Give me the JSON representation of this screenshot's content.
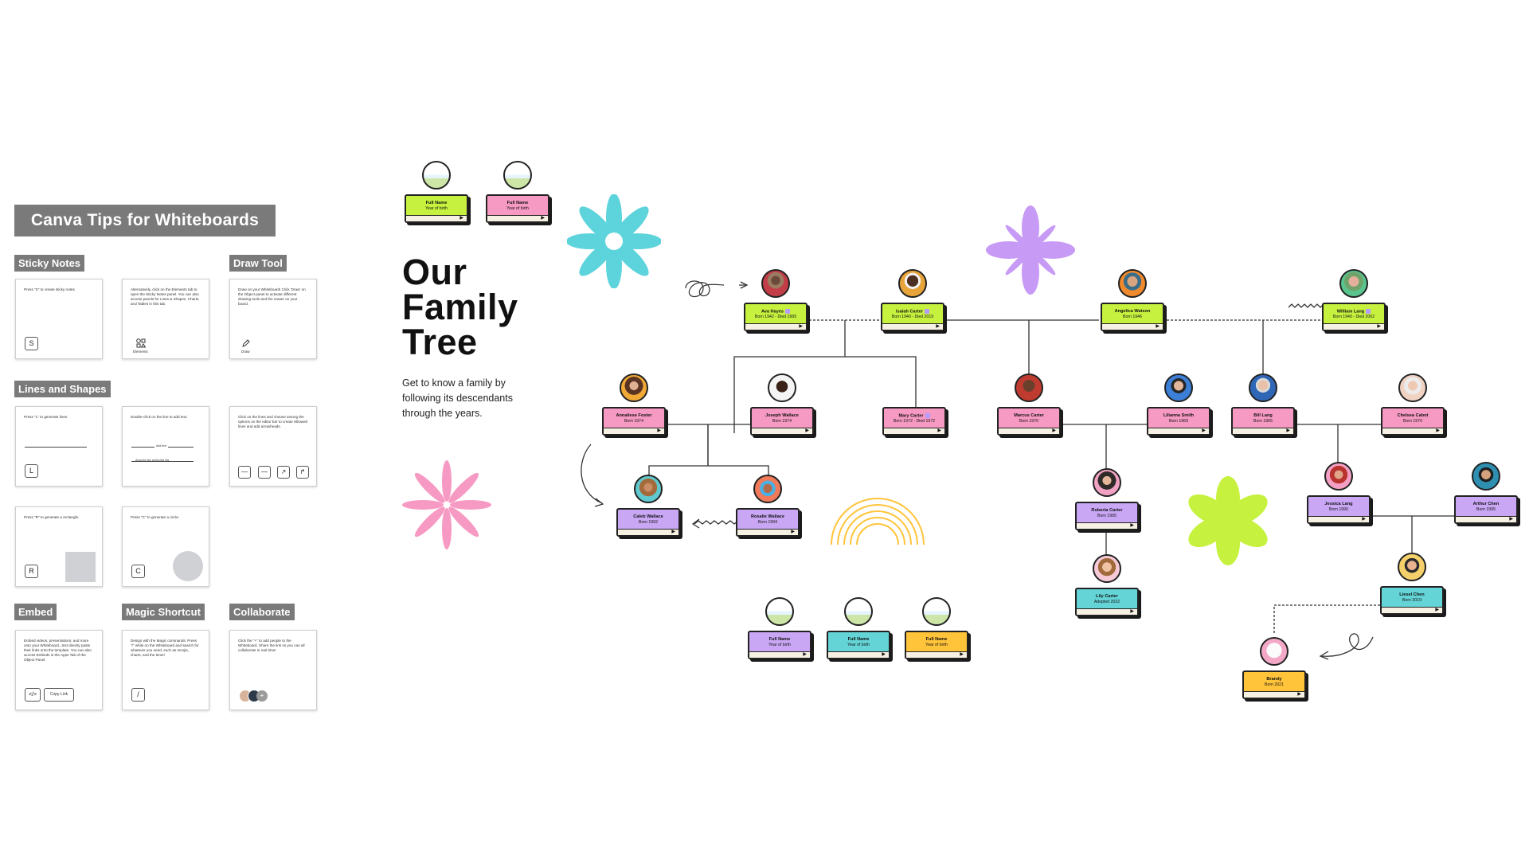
{
  "tips": {
    "title": "Canva Tips for Whiteboards",
    "sections": {
      "sticky_notes": "Sticky Notes",
      "draw_tool": "Draw Tool",
      "lines_and_shapes": "Lines and Shapes",
      "embed": "Embed",
      "magic_shortcut": "Magic Shortcut",
      "collaborate": "Collaborate"
    },
    "cards": {
      "sticky1": {
        "text": "Press \"S\" to create sticky notes.",
        "key": "S"
      },
      "sticky2": {
        "text": "Alternatively, click on the Elements tab to open the Sticky Notes panel. You can also access panels for Lines & Shapes, Charts, and Tables in this tab.",
        "icon_label": "Elements"
      },
      "draw": {
        "text": "Draw on your Whiteboard! Click 'Draw' on the Object panel to activate different drawing tools and the eraser on your board.",
        "icon_label": "Draw"
      },
      "lines1": {
        "text": "Press \"L\" to generate lines.",
        "key": "L"
      },
      "lines2": {
        "text": "Double-click on the line to add text.",
        "line_text_1": "Add text",
        "line_text_2": "Along the line writing like this"
      },
      "lines3": {
        "text": "Click on the lines and choose among the options on the editor bar to create elbowed lines and add arrowheads."
      },
      "rect": {
        "text": "Press \"R\" to generate a rectangle.",
        "key": "R"
      },
      "circle": {
        "text": "Press \"C\" to generate a circle.",
        "key": "C"
      },
      "embed": {
        "text": "Embed videos, presentations, and more onto your Whiteboard. Just directly paste their links onto the template. You can also access Embeds in the Apps Tab of the Object Panel.",
        "code_key": "</>",
        "copy_btn": "Copy Link"
      },
      "magic": {
        "text": "Design with the Magic commands. Press \"/\" while on the Whiteboard and search for whatever you need, such as emojis, charts, and the timer!",
        "key": "/"
      },
      "collab": {
        "text": "Click the \"+\" to add people to the Whiteboard. Share the link so you can all collaborate in real time!",
        "plus": "+"
      }
    }
  },
  "header": {
    "title_line1": "Our",
    "title_line2": "Family",
    "title_line3": "Tree",
    "subtitle": "Get to know a family by following its descendants through the years."
  },
  "templates": {
    "name": "Full Name",
    "year": "Year of birth"
  },
  "people": {
    "ava": {
      "name": "Ava Hayes",
      "years": "Born 1942 - Died 1965"
    },
    "isaiah": {
      "name": "Isaiah Carter",
      "years": "Born 1940 - Died 2019"
    },
    "angelica": {
      "name": "Angelica Watson",
      "years": "Born 1946"
    },
    "william": {
      "name": "William Lang",
      "years": "Born 1940 - Died 2002"
    },
    "annaliese": {
      "name": "Annaliese Foster",
      "years": "Born 1974"
    },
    "joseph": {
      "name": "Joseph Wallace",
      "years": "Born 1974"
    },
    "mary": {
      "name": "Mary Carter",
      "years": "Born 1972 - Died 1972"
    },
    "marcus": {
      "name": "Marcus Carter",
      "years": "Born 1970"
    },
    "lilianna": {
      "name": "Lilianna Smith",
      "years": "Born 1969"
    },
    "bill": {
      "name": "Bill Lang",
      "years": "Born 1965"
    },
    "chelsea": {
      "name": "Chelsea Cabot",
      "years": "Born 1970"
    },
    "caleb": {
      "name": "Caleb Wallace",
      "years": "Born 1992"
    },
    "rosalie": {
      "name": "Rosalie Wallace",
      "years": "Born 1994"
    },
    "roberta": {
      "name": "Roberta Carter",
      "years": "Born 1995"
    },
    "jessica": {
      "name": "Jessica Lang",
      "years": "Born 1990"
    },
    "arthur": {
      "name": "Arthur Chen",
      "years": "Born 1995"
    },
    "lily": {
      "name": "Lily Carter",
      "years": "Adopted 2022"
    },
    "liesel": {
      "name": "Liesel Chen",
      "years": "Born 2019"
    },
    "brandy": {
      "name": "Brandy",
      "years": "Born 2021"
    }
  },
  "colors": {
    "lime": "#c6f23f",
    "pink": "#f79ac3",
    "purple": "#c9a7f5",
    "teal": "#64d4d7",
    "orange": "#ffc43a",
    "panel_gray": "#7a7a7a"
  },
  "icons": [
    "star-flower-icon",
    "flower-icon",
    "rainbow-icon",
    "squiggle-icon",
    "arrow-icon"
  ]
}
